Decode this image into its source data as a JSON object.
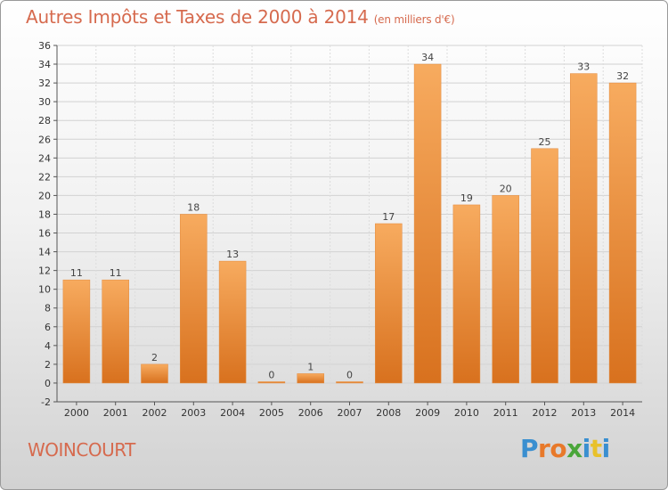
{
  "title": "Autres Impôts et Taxes de 2000 à 2014",
  "subtitle": "(en milliers d'€)",
  "commune": "WOINCOURT",
  "logo": "Proxiti",
  "colors": {
    "bar_light": "#f6a75a",
    "bar_dark": "#d9721f",
    "text_accent": "#d66a4e"
  },
  "chart_data": {
    "type": "bar",
    "categories": [
      "2000",
      "2001",
      "2002",
      "2003",
      "2004",
      "2005",
      "2006",
      "2007",
      "2008",
      "2009",
      "2010",
      "2011",
      "2012",
      "2013",
      "2014"
    ],
    "values": [
      11,
      11,
      2,
      18,
      13,
      0,
      1,
      0,
      17,
      34,
      19,
      20,
      25,
      33,
      32
    ],
    "ylim": [
      -2,
      36
    ],
    "yticks": [
      -2,
      0,
      2,
      4,
      6,
      8,
      10,
      12,
      14,
      16,
      18,
      20,
      22,
      24,
      26,
      28,
      30,
      32,
      34,
      36
    ],
    "grid": true,
    "xlabel": "",
    "ylabel": ""
  }
}
